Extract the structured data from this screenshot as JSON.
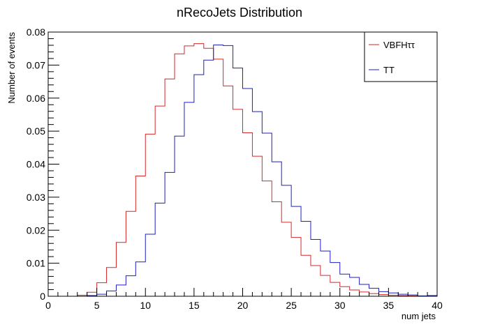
{
  "chart_data": {
    "type": "line",
    "title": "nRecoJets Distribution",
    "xlabel": "num jets",
    "ylabel": "Number of events",
    "xlim": [
      0,
      40
    ],
    "ylim": [
      0,
      0.08
    ],
    "x_ticks": [
      0,
      5,
      10,
      15,
      20,
      25,
      30,
      35,
      40
    ],
    "y_ticks": [
      0,
      0.01,
      0.02,
      0.03,
      0.04,
      0.05,
      0.06,
      0.07,
      0.08
    ],
    "x_tick_labels": [
      "0",
      "5",
      "10",
      "15",
      "20",
      "25",
      "30",
      "35",
      "40"
    ],
    "y_tick_labels": [
      "0",
      "0.01",
      "0.02",
      "0.03",
      "0.04",
      "0.05",
      "0.06",
      "0.07",
      "0.08"
    ],
    "bin_width": 1,
    "bin_edges_start": 0,
    "grid": false,
    "legend_position": "top-right",
    "series": [
      {
        "name": "VBFHττ",
        "color": "#d62728",
        "values": [
          0,
          0,
          0,
          0.0003,
          0.0012,
          0.0041,
          0.0087,
          0.0163,
          0.0257,
          0.0364,
          0.0491,
          0.0576,
          0.0658,
          0.0734,
          0.0758,
          0.0765,
          0.0751,
          0.0718,
          0.0637,
          0.0566,
          0.0495,
          0.0424,
          0.0349,
          0.0286,
          0.0224,
          0.0178,
          0.0124,
          0.0093,
          0.0063,
          0.0042,
          0.0029,
          0.0019,
          0.0013,
          0.0008,
          0.0005,
          0.0003,
          0.0002,
          0.0001,
          0.0001,
          0
        ]
      },
      {
        "name": "TT",
        "color": "#1f1fbf",
        "values": [
          0,
          0,
          0,
          0,
          0.0002,
          0.0006,
          0.0016,
          0.0034,
          0.0062,
          0.0104,
          0.0188,
          0.0282,
          0.0375,
          0.0485,
          0.0587,
          0.0671,
          0.0715,
          0.0761,
          0.0759,
          0.0691,
          0.0629,
          0.0559,
          0.0494,
          0.0407,
          0.0336,
          0.0272,
          0.0227,
          0.0172,
          0.0137,
          0.0102,
          0.0067,
          0.0057,
          0.0036,
          0.0024,
          0.0014,
          0.001,
          0.0006,
          0.0004,
          0.0001,
          0.0002
        ]
      }
    ]
  }
}
